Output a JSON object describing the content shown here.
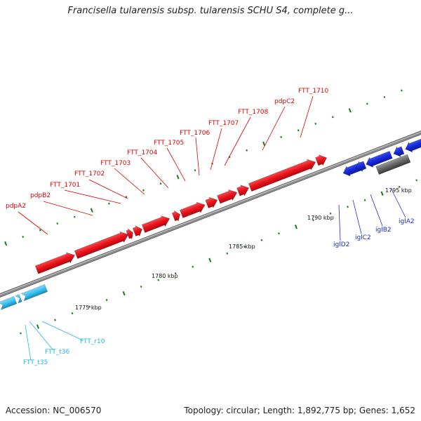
{
  "title": "Francisella tularensis subsp. tularensis SCHU S4, complete g...",
  "footer": {
    "accession": "Accession: NC_006570",
    "summary": "Topology: circular; Length: 1,892,775 bp; Genes: 1,652"
  },
  "colors": {
    "backbone": "#8c8c8c",
    "tick": "#1a7a1a",
    "red_genes": "#e8121a",
    "blue_genes": "#1428d8",
    "cyan_genes": "#38c0ee",
    "gray_gene": "#666666"
  },
  "scale_labels": [
    "1775 kbp",
    "1780 kbp",
    "1785 kbp",
    "1790 kbp",
    "1795 kbp"
  ],
  "red_labels": [
    "pdpA2",
    "pdpB2",
    "FTT_1701",
    "FTT_1702",
    "FTT_1703",
    "FTT_1704",
    "FTT_1705",
    "FTT_1706",
    "FTT_1707",
    "FTT_1708",
    "pdpC2",
    "FTT_1710"
  ],
  "blue_labels": [
    "iglD2",
    "iglC2",
    "iglB2",
    "iglA2"
  ],
  "cyan_labels": [
    "FTT_r10",
    "FTT_t36",
    "FTT_t35"
  ]
}
